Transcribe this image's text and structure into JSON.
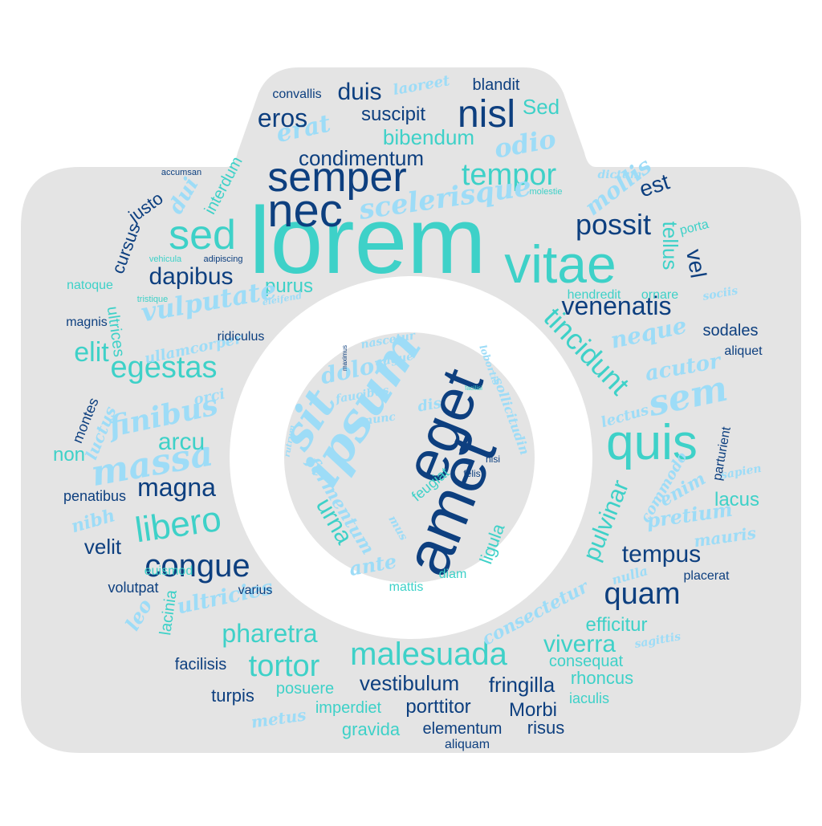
{
  "palette": {
    "background": "#ffffff",
    "camera": "#e4e4e4",
    "dark": "#0d3f7f",
    "teal": "#3ed1c8",
    "light": "#9ddcf7"
  },
  "words": [
    {
      "text": "lorem",
      "color": "teal"
    },
    {
      "text": "vitae",
      "color": "teal"
    },
    {
      "text": "nec",
      "color": "dark"
    },
    {
      "text": "semper",
      "color": "dark"
    },
    {
      "text": "sed",
      "color": "teal"
    },
    {
      "text": "quis",
      "color": "teal"
    },
    {
      "text": "nisl",
      "color": "dark"
    },
    {
      "text": "eget",
      "color": "dark"
    },
    {
      "text": "amet",
      "color": "dark"
    },
    {
      "text": "ipsum",
      "color": "light"
    },
    {
      "text": "sit",
      "color": "light"
    },
    {
      "text": "tempor",
      "color": "teal"
    },
    {
      "text": "scelerisque",
      "color": "light"
    },
    {
      "text": "odio",
      "color": "light"
    },
    {
      "text": "erat",
      "color": "light"
    },
    {
      "text": "eros",
      "color": "dark"
    },
    {
      "text": "duis",
      "color": "dark"
    },
    {
      "text": "suscipit",
      "color": "dark"
    },
    {
      "text": "Sed",
      "color": "teal"
    },
    {
      "text": "laoreet",
      "color": "light"
    },
    {
      "text": "blandit",
      "color": "dark"
    },
    {
      "text": "convallis",
      "color": "dark"
    },
    {
      "text": "bibendum",
      "color": "teal"
    },
    {
      "text": "condimentum",
      "color": "dark"
    },
    {
      "text": "possit",
      "color": "dark"
    },
    {
      "text": "est",
      "color": "dark"
    },
    {
      "text": "mollis",
      "color": "light"
    },
    {
      "text": "tellus",
      "color": "teal"
    },
    {
      "text": "vel",
      "color": "dark"
    },
    {
      "text": "dictum",
      "color": "light"
    },
    {
      "text": "molestie",
      "color": "teal"
    },
    {
      "text": "porta",
      "color": "teal"
    },
    {
      "text": "dapibus",
      "color": "dark"
    },
    {
      "text": "purus",
      "color": "teal"
    },
    {
      "text": "vulputate",
      "color": "light"
    },
    {
      "text": "venenatis",
      "color": "dark"
    },
    {
      "text": "tincidunt",
      "color": "teal"
    },
    {
      "text": "neque",
      "color": "light"
    },
    {
      "text": "sodales",
      "color": "dark"
    },
    {
      "text": "aliquet",
      "color": "dark"
    },
    {
      "text": "acutor",
      "color": "light"
    },
    {
      "text": "sem",
      "color": "light"
    },
    {
      "text": "elit",
      "color": "teal"
    },
    {
      "text": "egestas",
      "color": "teal"
    },
    {
      "text": "finibus",
      "color": "light"
    },
    {
      "text": "massa",
      "color": "light"
    },
    {
      "text": "arcu",
      "color": "teal"
    },
    {
      "text": "non",
      "color": "teal"
    },
    {
      "text": "magna",
      "color": "dark"
    },
    {
      "text": "libero",
      "color": "teal"
    },
    {
      "text": "congue",
      "color": "dark"
    },
    {
      "text": "velit",
      "color": "dark"
    },
    {
      "text": "euismod",
      "color": "teal"
    },
    {
      "text": "volutpat",
      "color": "dark"
    },
    {
      "text": "ultricies",
      "color": "light"
    },
    {
      "text": "lacinia",
      "color": "teal"
    },
    {
      "text": "pharetra",
      "color": "teal"
    },
    {
      "text": "tortor",
      "color": "teal"
    },
    {
      "text": "malesuada",
      "color": "teal"
    },
    {
      "text": "viverra",
      "color": "teal"
    },
    {
      "text": "efficitur",
      "color": "teal"
    },
    {
      "text": "quam",
      "color": "dark"
    },
    {
      "text": "tempus",
      "color": "dark"
    },
    {
      "text": "pulvinar",
      "color": "teal"
    },
    {
      "text": "lacus",
      "color": "teal"
    },
    {
      "text": "mauris",
      "color": "light"
    },
    {
      "text": "pretium",
      "color": "light"
    },
    {
      "text": "enim",
      "color": "light"
    },
    {
      "text": "commodo",
      "color": "light"
    },
    {
      "text": "placerat",
      "color": "dark"
    },
    {
      "text": "facilisis",
      "color": "dark"
    },
    {
      "text": "turpis",
      "color": "dark"
    },
    {
      "text": "posuere",
      "color": "teal"
    },
    {
      "text": "vestibulum",
      "color": "dark"
    },
    {
      "text": "fringilla",
      "color": "dark"
    },
    {
      "text": "porttitor",
      "color": "dark"
    },
    {
      "text": "Morbi",
      "color": "dark"
    },
    {
      "text": "imperdiet",
      "color": "teal"
    },
    {
      "text": "rhoncus",
      "color": "teal"
    },
    {
      "text": "consequat",
      "color": "teal"
    },
    {
      "text": "iaculis",
      "color": "teal"
    },
    {
      "text": "gravida",
      "color": "teal"
    },
    {
      "text": "elementum",
      "color": "dark"
    },
    {
      "text": "risus",
      "color": "dark"
    },
    {
      "text": "aliquam",
      "color": "dark"
    },
    {
      "text": "metus",
      "color": "light"
    },
    {
      "text": "penatibus",
      "color": "dark"
    },
    {
      "text": "montes",
      "color": "dark"
    },
    {
      "text": "luctus",
      "color": "light"
    },
    {
      "text": "nibh",
      "color": "light"
    },
    {
      "text": "orci",
      "color": "light"
    },
    {
      "text": "ullamcorper",
      "color": "light"
    },
    {
      "text": "ridiculus",
      "color": "dark"
    },
    {
      "text": "magnis",
      "color": "dark"
    },
    {
      "text": "ultrices",
      "color": "teal"
    },
    {
      "text": "natoque",
      "color": "teal"
    },
    {
      "text": "tristique",
      "color": "teal"
    },
    {
      "text": "vehicula",
      "color": "teal"
    },
    {
      "text": "adipiscing",
      "color": "dark"
    },
    {
      "text": "eleifend",
      "color": "light"
    },
    {
      "text": "cursus",
      "color": "dark"
    },
    {
      "text": "justo",
      "color": "dark"
    },
    {
      "text": "dui",
      "color": "light"
    },
    {
      "text": "interdum",
      "color": "teal"
    },
    {
      "text": "accumsan",
      "color": "dark"
    },
    {
      "text": "hendredit",
      "color": "teal"
    },
    {
      "text": "ornare",
      "color": "teal"
    },
    {
      "text": "sociis",
      "color": "light"
    },
    {
      "text": "parturient",
      "color": "dark"
    },
    {
      "text": "sapien",
      "color": "light"
    },
    {
      "text": "lectus",
      "color": "light"
    },
    {
      "text": "nulla",
      "color": "light"
    },
    {
      "text": "sagittis",
      "color": "light"
    },
    {
      "text": "consectetur",
      "color": "light"
    },
    {
      "text": "leo",
      "color": "light"
    },
    {
      "text": "varius",
      "color": "dark"
    },
    {
      "text": "mattis",
      "color": "teal"
    },
    {
      "text": "diam",
      "color": "teal"
    },
    {
      "text": "ante",
      "color": "light"
    },
    {
      "text": "ligula",
      "color": "teal"
    },
    {
      "text": "urna",
      "color": "teal"
    },
    {
      "text": "fermentum",
      "color": "light"
    },
    {
      "text": "dolor",
      "color": "light"
    },
    {
      "text": "faucibus",
      "color": "light"
    },
    {
      "text": "nunc",
      "color": "light"
    },
    {
      "text": "dis",
      "color": "light"
    },
    {
      "text": "augue",
      "color": "light"
    },
    {
      "text": "nascetur",
      "color": "light"
    },
    {
      "text": "feugiat",
      "color": "teal"
    },
    {
      "text": "felis",
      "color": "dark"
    },
    {
      "text": "nisi",
      "color": "dark"
    },
    {
      "text": "lobortis",
      "color": "light"
    },
    {
      "text": "sollicitudin",
      "color": "light"
    },
    {
      "text": "maximus",
      "color": "dark"
    },
    {
      "text": "facilisi",
      "color": "teal"
    },
    {
      "text": "rutrum",
      "color": "light"
    },
    {
      "text": "mus",
      "color": "light"
    }
  ]
}
